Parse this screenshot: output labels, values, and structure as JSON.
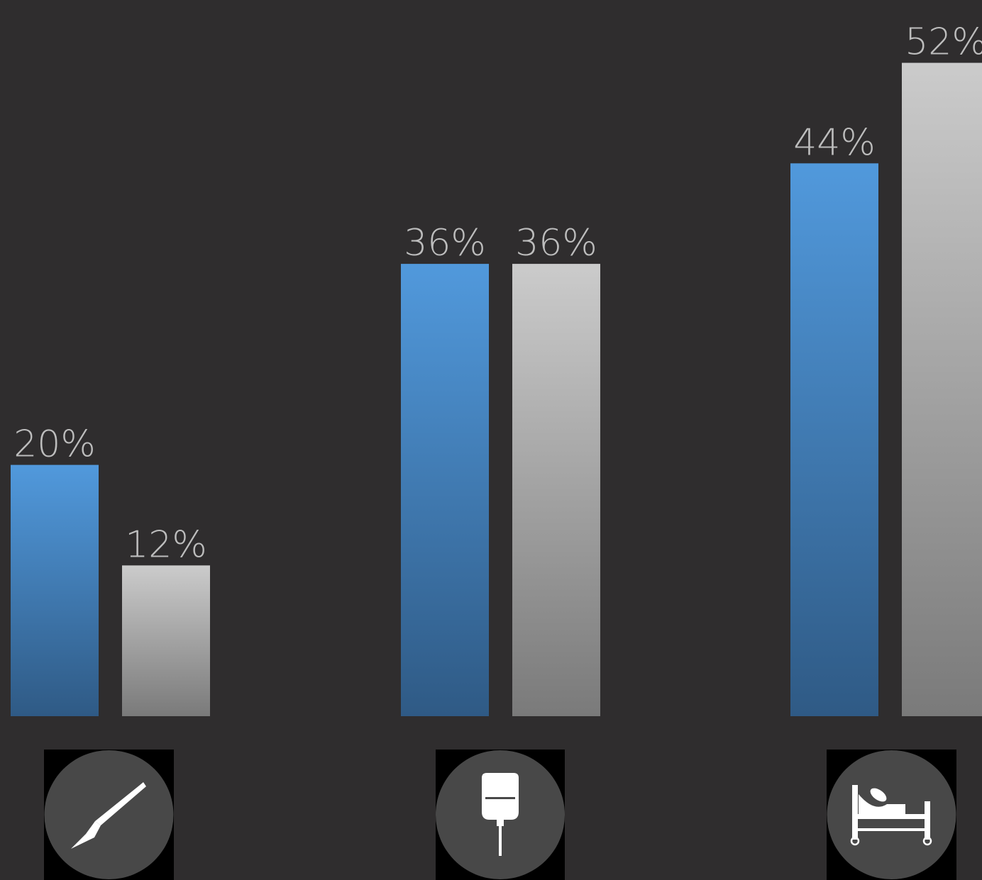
{
  "chart_data": {
    "type": "bar",
    "categories": [
      "scalpel-icon",
      "iv-bag-icon",
      "hospital-bed-icon"
    ],
    "series": [
      {
        "values": [
          20,
          36,
          44
        ],
        "color_top": "#5199dc",
        "color_bottom": "#2f5a85"
      },
      {
        "values": [
          12,
          36,
          52
        ],
        "color_top": "#cbcbcb",
        "color_bottom": "#7a7a7a"
      }
    ],
    "data_labels": [
      [
        "20%",
        "36%",
        "44%"
      ],
      [
        "12%",
        "36%",
        "52%"
      ]
    ],
    "ylim": [
      0,
      57
    ],
    "grid": false,
    "legend": "none",
    "label_color": "#bdbdbd",
    "icon_bg": "#484848",
    "icon_color": "#ffffff"
  }
}
